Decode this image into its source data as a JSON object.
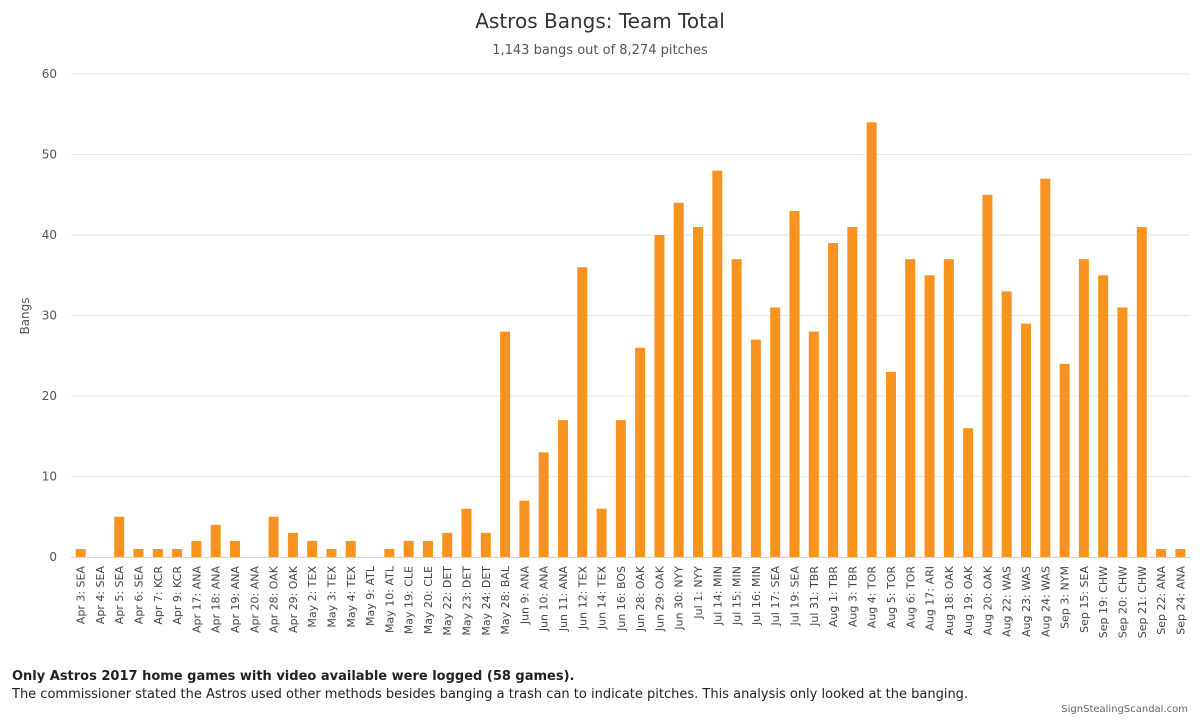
{
  "chart_data": {
    "type": "bar",
    "title": "Astros Bangs: Team Total",
    "subtitle": "1,143 bangs out of 8,274 pitches",
    "xlabel": "",
    "ylabel": "Bangs",
    "ylim": [
      0,
      60
    ],
    "yticks": [
      "0",
      "10",
      "20",
      "30",
      "40",
      "50",
      "60"
    ],
    "grid": true,
    "legend": "none",
    "bar_color": "#f7931e",
    "categories": [
      "Apr 3: SEA",
      "Apr 4: SEA",
      "Apr 5: SEA",
      "Apr 6: SEA",
      "Apr 7: KCR",
      "Apr 9: KCR",
      "Apr 17: ANA",
      "Apr 18: ANA",
      "Apr 19: ANA",
      "Apr 20: ANA",
      "Apr 28: OAK",
      "Apr 29: OAK",
      "May 2: TEX",
      "May 3: TEX",
      "May 4: TEX",
      "May 9: ATL",
      "May 10: ATL",
      "May 19: CLE",
      "May 20: CLE",
      "May 22: DET",
      "May 23: DET",
      "May 24: DET",
      "May 28: BAL",
      "Jun 9: ANA",
      "Jun 10: ANA",
      "Jun 11: ANA",
      "Jun 12: TEX",
      "Jun 14: TEX",
      "Jun 16: BOS",
      "Jun 28: OAK",
      "Jun 29: OAK",
      "Jun 30: NYY",
      "Jul 1: NYY",
      "Jul 14: MIN",
      "Jul 15: MIN",
      "Jul 16: MIN",
      "Jul 17: SEA",
      "Jul 19: SEA",
      "Jul 31: TBR",
      "Aug 1: TBR",
      "Aug 3: TBR",
      "Aug 4: TOR",
      "Aug 5: TOR",
      "Aug 6: TOR",
      "Aug 17: ARI",
      "Aug 18: OAK",
      "Aug 19: OAK",
      "Aug 20: OAK",
      "Aug 22: WAS",
      "Aug 23: WAS",
      "Aug 24: WAS",
      "Sep 3: NYM",
      "Sep 15: SEA",
      "Sep 19: CHW",
      "Sep 20: CHW",
      "Sep 21: CHW",
      "Sep 22: ANA",
      "Sep 24: ANA"
    ],
    "values": [
      1,
      0,
      5,
      1,
      1,
      1,
      2,
      4,
      2,
      0,
      5,
      3,
      2,
      1,
      2,
      0,
      1,
      2,
      2,
      3,
      6,
      3,
      28,
      7,
      13,
      17,
      36,
      6,
      17,
      26,
      40,
      44,
      41,
      48,
      37,
      27,
      31,
      43,
      28,
      39,
      41,
      54,
      23,
      37,
      35,
      37,
      16,
      45,
      33,
      29,
      47,
      24,
      37,
      35,
      31,
      41,
      1,
      1
    ]
  },
  "footnotes": {
    "bold": "Only Astros 2017 home games with video available were logged (58 games).",
    "text": "The commissioner stated the Astros used other methods besides banging a trash can to indicate pitches. This analysis only looked at the banging."
  },
  "credit": "SignStealingScandal.com"
}
